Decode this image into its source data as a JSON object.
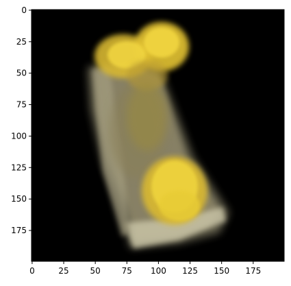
{
  "figure": {
    "type": "image-display",
    "background": "#ffffff",
    "image_background": "#000000",
    "subject": "blurry rectangular object with two yellow blobs",
    "colors": {
      "object_body": "#8b8468",
      "object_edge": "#c8c3a5",
      "yellow_blob": "#e6c530",
      "yellow_core": "#f2d640",
      "outer_black": "#000000"
    }
  },
  "chart_data": {
    "type": "image",
    "x_ticks": [
      "0",
      "25",
      "50",
      "75",
      "100",
      "125",
      "150",
      "175"
    ],
    "y_ticks": [
      "0",
      "25",
      "50",
      "75",
      "100",
      "125",
      "150",
      "175"
    ],
    "xlim": [
      0,
      199
    ],
    "ylim": [
      199,
      0
    ],
    "x_tick_values": [
      0,
      25,
      50,
      75,
      100,
      125,
      150,
      175
    ],
    "y_tick_values": [
      0,
      25,
      50,
      75,
      100,
      125,
      150,
      175
    ],
    "grid": false
  }
}
